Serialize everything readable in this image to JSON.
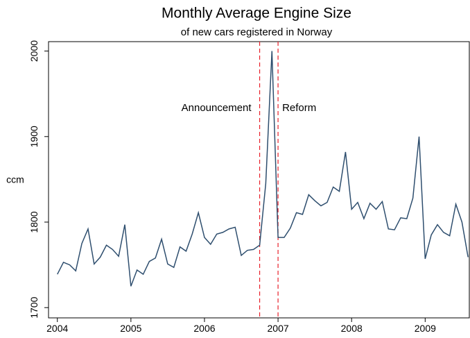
{
  "chart_data": {
    "type": "line",
    "title": "Monthly Average Engine Size",
    "subtitle": "of new cars registered in Norway",
    "ylabel": "ccm",
    "x": [
      2004,
      2004.083,
      2004.167,
      2004.25,
      2004.333,
      2004.417,
      2004.5,
      2004.583,
      2004.667,
      2004.75,
      2004.833,
      2004.917,
      2005,
      2005.083,
      2005.167,
      2005.25,
      2005.333,
      2005.417,
      2005.5,
      2005.583,
      2005.667,
      2005.75,
      2005.833,
      2005.917,
      2006,
      2006.083,
      2006.167,
      2006.25,
      2006.333,
      2006.417,
      2006.5,
      2006.583,
      2006.667,
      2006.75,
      2006.833,
      2006.917,
      2007,
      2007.083,
      2007.167,
      2007.25,
      2007.333,
      2007.417,
      2007.5,
      2007.583,
      2007.667,
      2007.75,
      2007.833,
      2007.917,
      2008,
      2008.083,
      2008.167,
      2008.25,
      2008.333,
      2008.417,
      2008.5,
      2008.583,
      2008.667,
      2008.75,
      2008.833,
      2008.917,
      2009,
      2009.083,
      2009.167,
      2009.25,
      2009.333,
      2009.417,
      2009.5,
      2009.583
    ],
    "series": [
      {
        "name": "ccm",
        "color": "#2e4e6e",
        "values": [
          1739,
          1753,
          1750,
          1743,
          1775,
          1792,
          1751,
          1759,
          1773,
          1768,
          1760,
          1797,
          1725,
          1744,
          1739,
          1754,
          1758,
          1780,
          1751,
          1747,
          1771,
          1766,
          1786,
          1811,
          1782,
          1774,
          1786,
          1788,
          1792,
          1794,
          1761,
          1767,
          1768,
          1773,
          1845,
          2000,
          1782,
          1782,
          1793,
          1811,
          1809,
          1832,
          1825,
          1819,
          1823,
          1841,
          1836,
          1882,
          1815,
          1823,
          1804,
          1822,
          1815,
          1824,
          1792,
          1791,
          1805,
          1804,
          1828,
          1900,
          1757,
          1785,
          1797,
          1788,
          1784,
          1821,
          1800,
          1759
        ]
      }
    ],
    "xlim": [
      2003.88,
      2009.6
    ],
    "xticks": [
      2004,
      2005,
      2006,
      2007,
      2008,
      2009
    ],
    "ylim": [
      1688,
      2011
    ],
    "yticks": [
      1700,
      1800,
      1900,
      2000
    ],
    "annotations": [
      {
        "x": 2006.75,
        "label": "Announcement",
        "color": "#e8202a"
      },
      {
        "x": 2007,
        "label": "Reform",
        "color": "#e8202a"
      }
    ]
  }
}
